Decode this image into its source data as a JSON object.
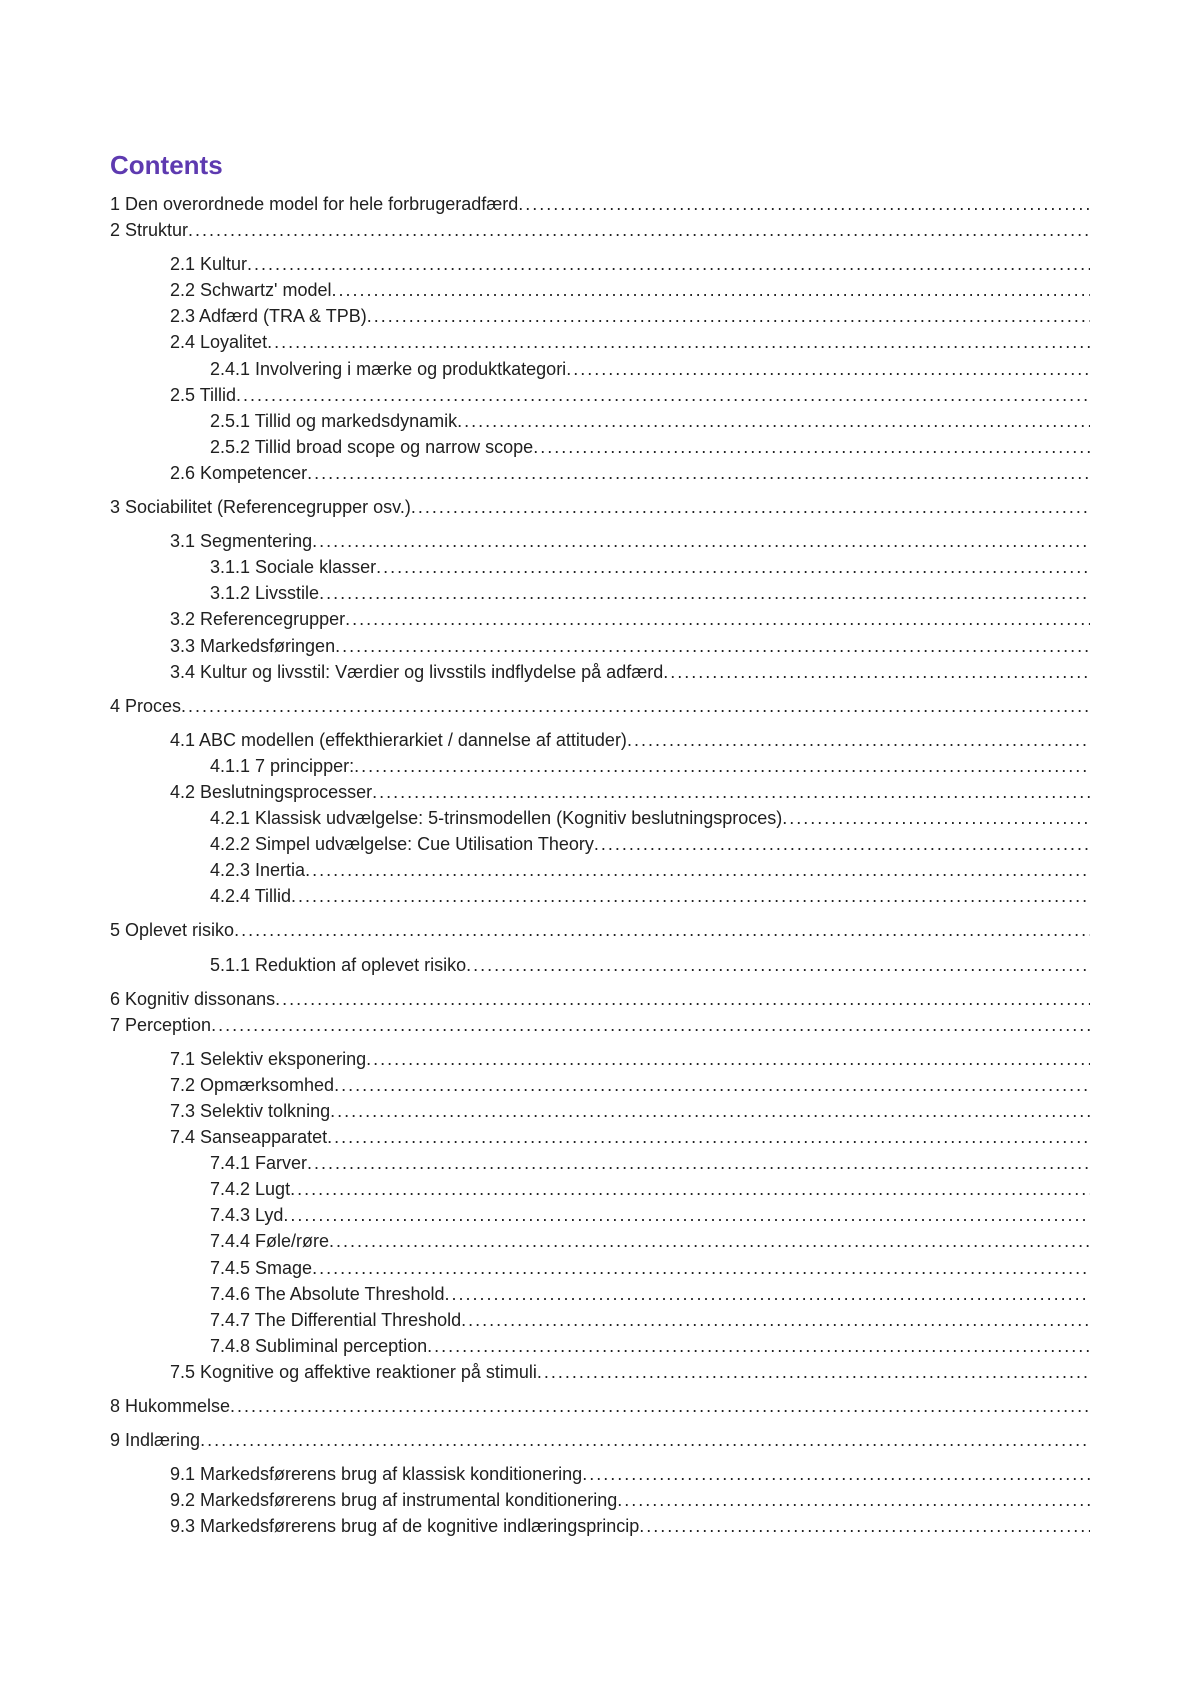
{
  "title": "Contents",
  "entries": [
    {
      "label": "1 Den overordnede model for hele forbrugeradfærd",
      "indent": 0,
      "spaceBefore": false
    },
    {
      "label": "2 Struktur",
      "indent": 0,
      "spaceBefore": false
    },
    {
      "label": "2.1 Kultur",
      "indent": 1,
      "spaceBefore": true
    },
    {
      "label": "2.2 Schwartz' model",
      "indent": 1,
      "spaceBefore": false
    },
    {
      "label": "2.3 Adfærd (TRA & TPB)",
      "indent": 1,
      "spaceBefore": false
    },
    {
      "label": "2.4 Loyalitet",
      "indent": 1,
      "spaceBefore": false
    },
    {
      "label": "2.4.1 Involvering i mærke og produktkategori",
      "indent": 2,
      "spaceBefore": false
    },
    {
      "label": "2.5 Tillid",
      "indent": 1,
      "spaceBefore": false
    },
    {
      "label": "2.5.1 Tillid og markedsdynamik",
      "indent": 2,
      "spaceBefore": false
    },
    {
      "label": "2.5.2 Tillid broad scope og narrow scope",
      "indent": 2,
      "spaceBefore": false
    },
    {
      "label": "2.6 Kompetencer",
      "indent": 1,
      "spaceBefore": false
    },
    {
      "label": "3 Sociabilitet (Referencegrupper osv.)",
      "indent": 0,
      "spaceBefore": true
    },
    {
      "label": "3.1 Segmentering",
      "indent": 1,
      "spaceBefore": true
    },
    {
      "label": "3.1.1 Sociale klasser",
      "indent": 2,
      "spaceBefore": false
    },
    {
      "label": "3.1.2 Livsstile",
      "indent": 2,
      "spaceBefore": false
    },
    {
      "label": "3.2 Referencegrupper",
      "indent": 1,
      "spaceBefore": false
    },
    {
      "label": "3.3 Markedsføringen",
      "indent": 1,
      "spaceBefore": false
    },
    {
      "label": "3.4 Kultur og livsstil: Værdier og livsstils indflydelse på adfærd",
      "indent": 1,
      "spaceBefore": false
    },
    {
      "label": "4 Proces",
      "indent": 0,
      "spaceBefore": true
    },
    {
      "label": "4.1 ABC modellen (effekthierarkiet / dannelse af attituder)",
      "indent": 1,
      "spaceBefore": true
    },
    {
      "label": "4.1.1 7 principper:",
      "indent": 2,
      "spaceBefore": false
    },
    {
      "label": "4.2 Beslutningsprocesser",
      "indent": 1,
      "spaceBefore": false
    },
    {
      "label": "4.2.1 Klassisk udvælgelse: 5-trinsmodellen (Kognitiv beslutningsproces)",
      "indent": 2,
      "spaceBefore": false
    },
    {
      "label": "4.2.2 Simpel udvælgelse: Cue Utilisation Theory",
      "indent": 2,
      "spaceBefore": false
    },
    {
      "label": "4.2.3 Inertia",
      "indent": 2,
      "spaceBefore": false
    },
    {
      "label": "4.2.4 Tillid",
      "indent": 2,
      "spaceBefore": false
    },
    {
      "label": "5 Oplevet risiko",
      "indent": 0,
      "spaceBefore": true
    },
    {
      "label": "5.1.1 Reduktion af oplevet risiko",
      "indent": 2,
      "spaceBefore": true
    },
    {
      "label": "6 Kognitiv dissonans",
      "indent": 0,
      "spaceBefore": true
    },
    {
      "label": "7 Perception",
      "indent": 0,
      "spaceBefore": false
    },
    {
      "label": "7.1 Selektiv eksponering",
      "indent": 1,
      "spaceBefore": true
    },
    {
      "label": "7.2 Opmærksomhed",
      "indent": 1,
      "spaceBefore": false
    },
    {
      "label": "7.3 Selektiv tolkning",
      "indent": 1,
      "spaceBefore": false
    },
    {
      "label": "7.4 Sanseapparatet",
      "indent": 1,
      "spaceBefore": false
    },
    {
      "label": "7.4.1 Farver",
      "indent": 2,
      "spaceBefore": false
    },
    {
      "label": "7.4.2 Lugt",
      "indent": 2,
      "spaceBefore": false
    },
    {
      "label": "7.4.3 Lyd",
      "indent": 2,
      "spaceBefore": false
    },
    {
      "label": "7.4.4 Føle/røre",
      "indent": 2,
      "spaceBefore": false
    },
    {
      "label": "7.4.5 Smage",
      "indent": 2,
      "spaceBefore": false
    },
    {
      "label": "7.4.6 The Absolute Threshold",
      "indent": 2,
      "spaceBefore": false
    },
    {
      "label": "7.4.7 The Differential Threshold",
      "indent": 2,
      "spaceBefore": false
    },
    {
      "label": "7.4.8 Subliminal perception",
      "indent": 2,
      "spaceBefore": false
    },
    {
      "label": "7.5 Kognitive og affektive reaktioner på stimuli",
      "indent": 1,
      "spaceBefore": false
    },
    {
      "label": "8 Hukommelse",
      "indent": 0,
      "spaceBefore": true
    },
    {
      "label": "9 Indlæring",
      "indent": 0,
      "spaceBefore": true
    },
    {
      "label": "9.1 Markedsførerens brug af klassisk konditionering",
      "indent": 1,
      "spaceBefore": true
    },
    {
      "label": "9.2 Markedsførerens brug af instrumental konditionering",
      "indent": 1,
      "spaceBefore": false
    },
    {
      "label": "9.3 Markedsførerens brug af de kognitive indlæringsprincip",
      "indent": 1,
      "spaceBefore": false
    }
  ],
  "colors": {
    "title": "#5e3ab0",
    "text": "#202020",
    "background": "#ffffff"
  },
  "typography": {
    "title_fontsize": 26,
    "body_fontsize": 18,
    "font_family": "Arial, Helvetica, sans-serif"
  },
  "dotsFill": "................................................................................................................................................................................................"
}
